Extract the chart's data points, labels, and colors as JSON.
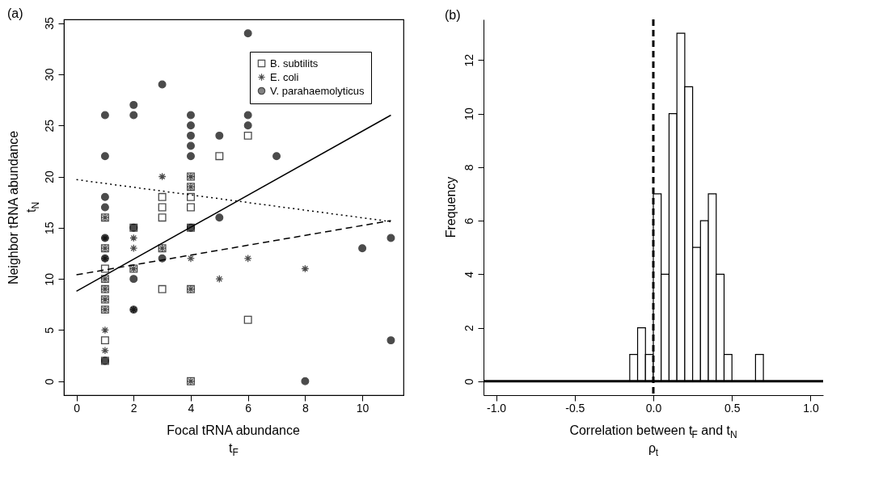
{
  "chart_data": [
    {
      "type": "scatter",
      "title": "(a)",
      "xlabel": "Focal tRNA abundance\nt$_{F}$",
      "ylabel": "Neighbor tRNA abundance\nt$_{N}$",
      "xlim": [
        -0.44,
        11.44
      ],
      "ylim": [
        -1.36,
        35.36
      ],
      "xticks": [
        0,
        2,
        4,
        6,
        8,
        10
      ],
      "yticks": [
        0,
        5,
        10,
        15,
        20,
        25,
        30,
        35
      ],
      "grid": false,
      "legend": "top right",
      "series": [
        {
          "name": "B. subtilits",
          "color": "#000000",
          "marker": "square",
          "x": [
            1,
            1,
            1,
            1,
            1,
            1,
            1,
            1,
            1,
            2,
            2,
            3,
            3,
            3,
            3,
            3,
            4,
            4,
            4,
            4,
            4,
            4,
            4,
            5,
            6,
            6
          ],
          "values": [
            16,
            13,
            11,
            10,
            9,
            8,
            7,
            4,
            2,
            15,
            11,
            18,
            17,
            16,
            13,
            9,
            20,
            19,
            18,
            17,
            15,
            9,
            0,
            22,
            24,
            6
          ]
        },
        {
          "name": "E. coli",
          "color": "#000000",
          "marker": "cross",
          "x": [
            1,
            1,
            1,
            1,
            1,
            1,
            1,
            1,
            1,
            1,
            2,
            2,
            2,
            2,
            3,
            3,
            4,
            4,
            4,
            4,
            4,
            5,
            6,
            8
          ],
          "values": [
            16,
            14,
            13,
            12,
            10,
            9,
            8,
            7,
            5,
            3,
            14,
            13,
            11,
            7,
            20,
            13,
            20,
            19,
            12,
            9,
            0,
            10,
            12,
            11
          ]
        },
        {
          "name": "V. parahaemolyticus",
          "color": "#000000",
          "marker": "circle",
          "x": [
            1,
            1,
            1,
            1,
            1,
            1,
            1,
            2,
            2,
            2,
            2,
            2,
            3,
            3,
            4,
            4,
            4,
            4,
            4,
            4,
            5,
            5,
            6,
            6,
            6,
            7,
            8,
            10,
            11,
            11
          ],
          "values": [
            26,
            22,
            18,
            17,
            14,
            12,
            2,
            27,
            26,
            15,
            10,
            7,
            29,
            12,
            26,
            25,
            24,
            23,
            22,
            15,
            24,
            16,
            34,
            26,
            25,
            22,
            0,
            13,
            14,
            4
          ]
        },
        {
          "type": "line",
          "color": "#000000",
          "line_style": "solid",
          "x": [
            0,
            11
          ],
          "values": [
            8.8,
            26
          ]
        },
        {
          "type": "line",
          "color": "#000000",
          "line_style": "dotted",
          "x": [
            0,
            11
          ],
          "values": [
            19.7,
            15.6
          ]
        },
        {
          "type": "line",
          "color": "#000000",
          "line_style": "dashed",
          "x": [
            0,
            11
          ],
          "values": [
            10.4,
            15.7
          ]
        }
      ]
    },
    {
      "type": "histogram",
      "title": "(b)",
      "xlabel": "Correlation between t$_{F}$ and t$_{N}$\nρ$_{t}$",
      "ylabel": "Frequency",
      "xlim": [
        -1.08,
        1.08
      ],
      "ylim": [
        -0.52,
        13.52
      ],
      "xticks": [
        {
          "value": -1,
          "label": "-1.0"
        },
        {
          "value": -0.5,
          "label": "-0.5"
        },
        {
          "value": 0,
          "label": "0.0"
        },
        {
          "value": 0.5,
          "label": "0.5"
        },
        {
          "value": 1,
          "label": "1.0"
        }
      ],
      "yticks": [
        0,
        2,
        4,
        6,
        8,
        10,
        12
      ],
      "grid": false,
      "color": "#ffffff",
      "bins": [
        -0.15,
        -0.1,
        -0.05,
        0,
        0.05,
        0.1,
        0.15,
        0.2,
        0.25,
        0.3,
        0.35,
        0.4,
        0.45,
        0.5,
        0.55,
        0.6,
        0.65,
        0.7
      ],
      "values": [
        1,
        2,
        1,
        7,
        4,
        10,
        13,
        11,
        5,
        6,
        7,
        4,
        1,
        0,
        0,
        0,
        1
      ],
      "ref_lines": [
        {
          "axis": "x",
          "value": 0,
          "line_style": "dashed",
          "color": "#000000"
        },
        {
          "axis": "y",
          "value": 0,
          "line_style": "solid",
          "color": "#000000"
        }
      ]
    }
  ]
}
